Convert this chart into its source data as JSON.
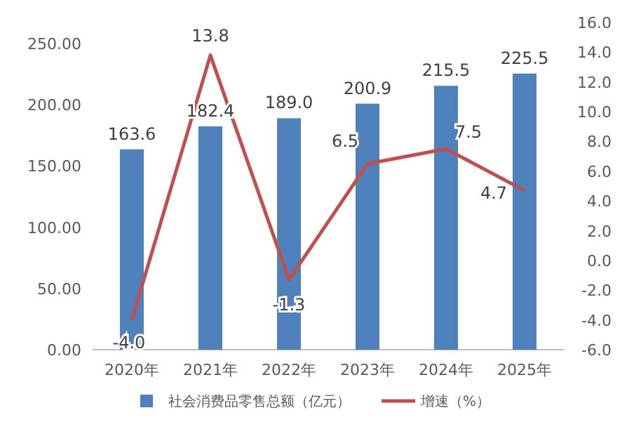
{
  "chart_data": {
    "type": "bar",
    "categories": [
      "2020年",
      "2021年",
      "2022年",
      "2023年",
      "2024年",
      "2025年"
    ],
    "series": [
      {
        "name": "社会消费品零售总额（亿元）",
        "color": "#4f81bd",
        "values": [
          163.6,
          182.4,
          189.0,
          200.9,
          215.5,
          225.5
        ],
        "value_labels": [
          "163.6",
          "182.4",
          "189.0",
          "200.9",
          "215.5",
          "225.5"
        ]
      },
      {
        "name": "增速（%）",
        "type": "line",
        "axis": "y2",
        "color": "#c0504d",
        "values": [
          -4.0,
          13.8,
          -1.3,
          6.5,
          7.5,
          4.7
        ],
        "value_labels": [
          "-4.0",
          "13.8",
          "-1.3",
          "6.5",
          "7.5",
          "4.7"
        ]
      }
    ],
    "ylim": [
      0,
      250
    ],
    "yticks": [
      {
        "value": 0,
        "label": "0.00"
      },
      {
        "value": 50,
        "label": "50.00"
      },
      {
        "value": 100,
        "label": "100.00"
      },
      {
        "value": 150,
        "label": "150.00"
      },
      {
        "value": 200,
        "label": "200.00"
      },
      {
        "value": 250,
        "label": "250.00"
      }
    ],
    "y2lim": [
      -6,
      16
    ],
    "y2ticks": [
      {
        "value": -6,
        "label": "-6.0"
      },
      {
        "value": -4,
        "label": "-4.0"
      },
      {
        "value": -2,
        "label": "-2.0"
      },
      {
        "value": 0,
        "label": "0.0"
      },
      {
        "value": 2,
        "label": "2.0"
      },
      {
        "value": 4,
        "label": "4.0"
      },
      {
        "value": 6,
        "label": "6.0"
      },
      {
        "value": 8,
        "label": "8.0"
      },
      {
        "value": 10,
        "label": "10.0"
      },
      {
        "value": 12,
        "label": "12.0"
      },
      {
        "value": 14,
        "label": "14.0"
      },
      {
        "value": 16,
        "label": "16.0"
      }
    ],
    "legend": "bottom",
    "marker": "none",
    "grid": false
  }
}
